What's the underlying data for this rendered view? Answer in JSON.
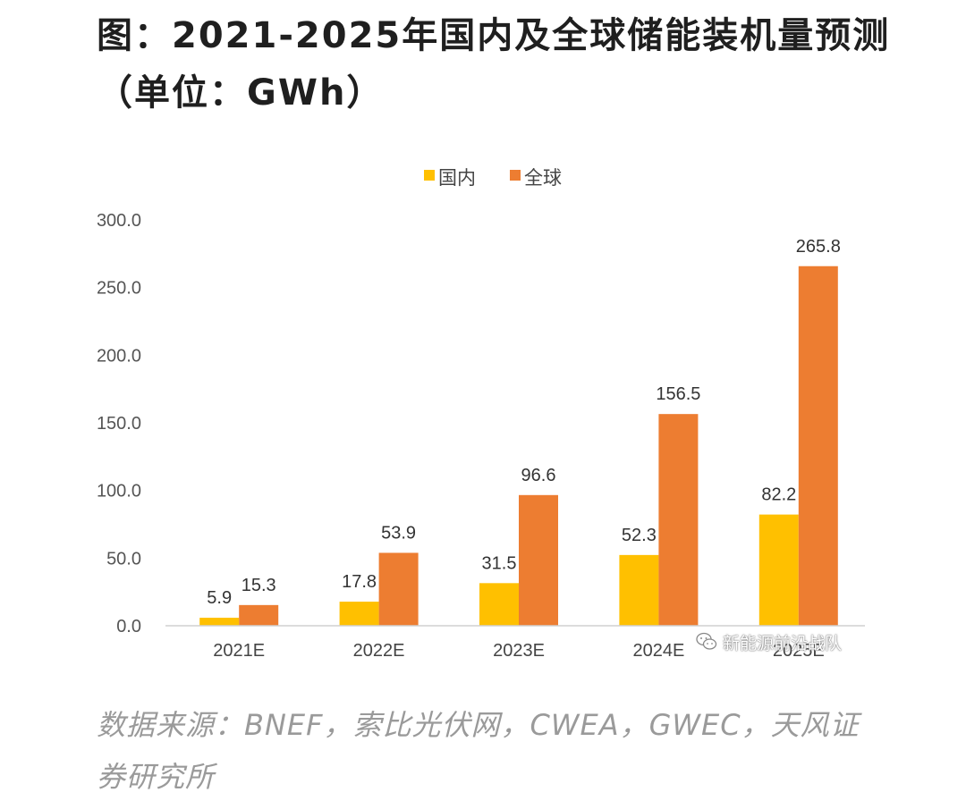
{
  "chart_data": {
    "type": "bar",
    "title": "图：2021-2025年国内及全球储能装机量预测（单位：GWh）",
    "categories": [
      "2021E",
      "2022E",
      "2023E",
      "2024E",
      "2025E"
    ],
    "series": [
      {
        "name": "国内",
        "color": "#FFC000",
        "values": [
          5.9,
          17.8,
          31.5,
          52.3,
          82.2
        ],
        "labels": [
          "5.9",
          "17.8",
          "31.5",
          "52.3",
          "82.2"
        ]
      },
      {
        "name": "全球",
        "color": "#ED7D31",
        "values": [
          15.3,
          53.9,
          96.6,
          156.5,
          265.8
        ],
        "labels": [
          "15.3",
          "53.9",
          "96.6",
          "156.5",
          "265.8"
        ]
      }
    ],
    "yticks": [
      "0.0",
      "50.0",
      "100.0",
      "150.0",
      "200.0",
      "250.0",
      "300.0"
    ],
    "ylim": [
      0,
      300
    ],
    "xlabel": "",
    "ylabel": "",
    "grid": false,
    "legend": "top-center"
  },
  "source_text": "数据来源：BNEF，索比光伏网，CWEA，GWEC，天风证券研究所",
  "watermark": {
    "text": "新能源前沿战队",
    "icon": "wechat-icon"
  }
}
